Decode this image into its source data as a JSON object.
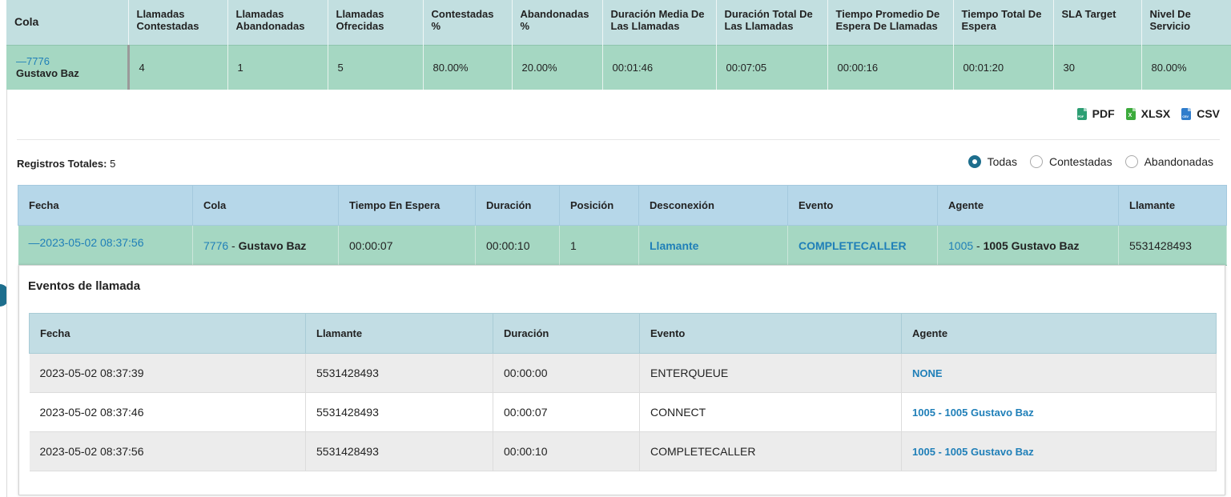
{
  "summary": {
    "headers": [
      "Cola",
      "Llamadas Contestadas",
      "Llamadas Abandonadas",
      "Llamadas Ofrecidas",
      "Contestadas %",
      "Abandonadas %",
      "Duración Media De Las Llamadas",
      "Duración Total De Las Llamadas",
      "Tiempo Promedio De Espera De Llamadas",
      "Tiempo Total De Espera",
      "SLA Target",
      "Nivel De Servicio"
    ],
    "row": {
      "collapse_symbol": "—",
      "queue_number": "7776",
      "queue_name": "Gustavo Baz",
      "values": [
        "4",
        "1",
        "5",
        "80.00%",
        "20.00%",
        "00:01:46",
        "00:07:05",
        "00:00:16",
        "00:01:20",
        "30",
        "80.00%"
      ]
    }
  },
  "exports": {
    "pdf": "PDF",
    "xlsx": "XLSX",
    "csv": "CSV",
    "pdf_icon_text": "PDF",
    "csv_icon_text": "CSV",
    "xlsx_icon_text": "X"
  },
  "totals": {
    "label": "Registros Totales:",
    "value": "5"
  },
  "filters": {
    "options": [
      "Todas",
      "Contestadas",
      "Abandonadas"
    ],
    "selected": "Todas"
  },
  "calls": {
    "headers": [
      "Fecha",
      "Cola",
      "Tiempo En Espera",
      "Duración",
      "Posición",
      "Desconexión",
      "Evento",
      "Agente",
      "Llamante"
    ],
    "row": {
      "collapse_symbol": "—",
      "fecha": "2023-05-02 08:37:56",
      "cola_number": "7776",
      "cola_separator": " - ",
      "cola_name": "Gustavo Baz",
      "tiempo_espera": "00:00:07",
      "duracion": "00:00:10",
      "posicion": "1",
      "desconexion": "Llamante",
      "evento": "COMPLETECALLER",
      "agente_number": "1005",
      "agente_separator": " - ",
      "agente_name": "1005 Gustavo Baz",
      "llamante": "5531428493"
    }
  },
  "events": {
    "title": "Eventos de llamada",
    "headers": [
      "Fecha",
      "Llamante",
      "Duración",
      "Evento",
      "Agente"
    ],
    "rows": [
      {
        "fecha": "2023-05-02 08:37:39",
        "llamante": "5531428493",
        "duracion": "00:00:00",
        "evento": "ENTERQUEUE",
        "agente": "NONE"
      },
      {
        "fecha": "2023-05-02 08:37:46",
        "llamante": "5531428493",
        "duracion": "00:00:07",
        "evento": "CONNECT",
        "agente": "1005 - 1005 Gustavo Baz"
      },
      {
        "fecha": "2023-05-02 08:37:56",
        "llamante": "5531428493",
        "duracion": "00:00:10",
        "evento": "COMPLETECALLER",
        "agente": "1005 - 1005 Gustavo Baz"
      }
    ]
  },
  "colors": {
    "header_bg": "#c2dfe0",
    "row_green": "#a5d7c2",
    "calls_header_bg": "#b6d7e9",
    "link": "#1f7fb8",
    "radio_selected": "#1d6e8d"
  }
}
